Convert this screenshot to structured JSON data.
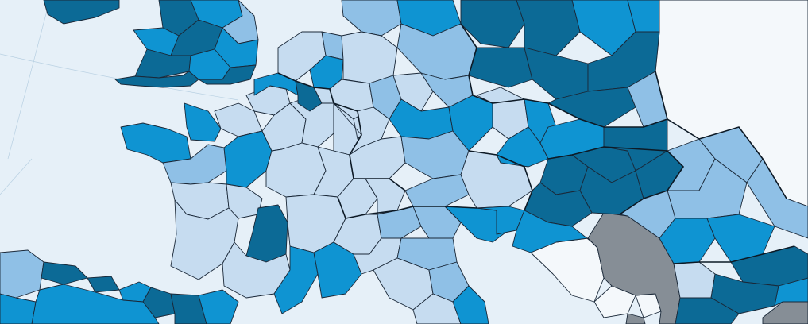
{
  "map": {
    "colors": {
      "sea": "#e6f0f8",
      "class_1": "#c6dcf0",
      "class_2": "#8fc0e6",
      "class_3": "#0f94d2",
      "class_4": "#0c6a96",
      "no_data": "#868e96",
      "outside": "#f4f8fb"
    },
    "legend_visible": false
  }
}
